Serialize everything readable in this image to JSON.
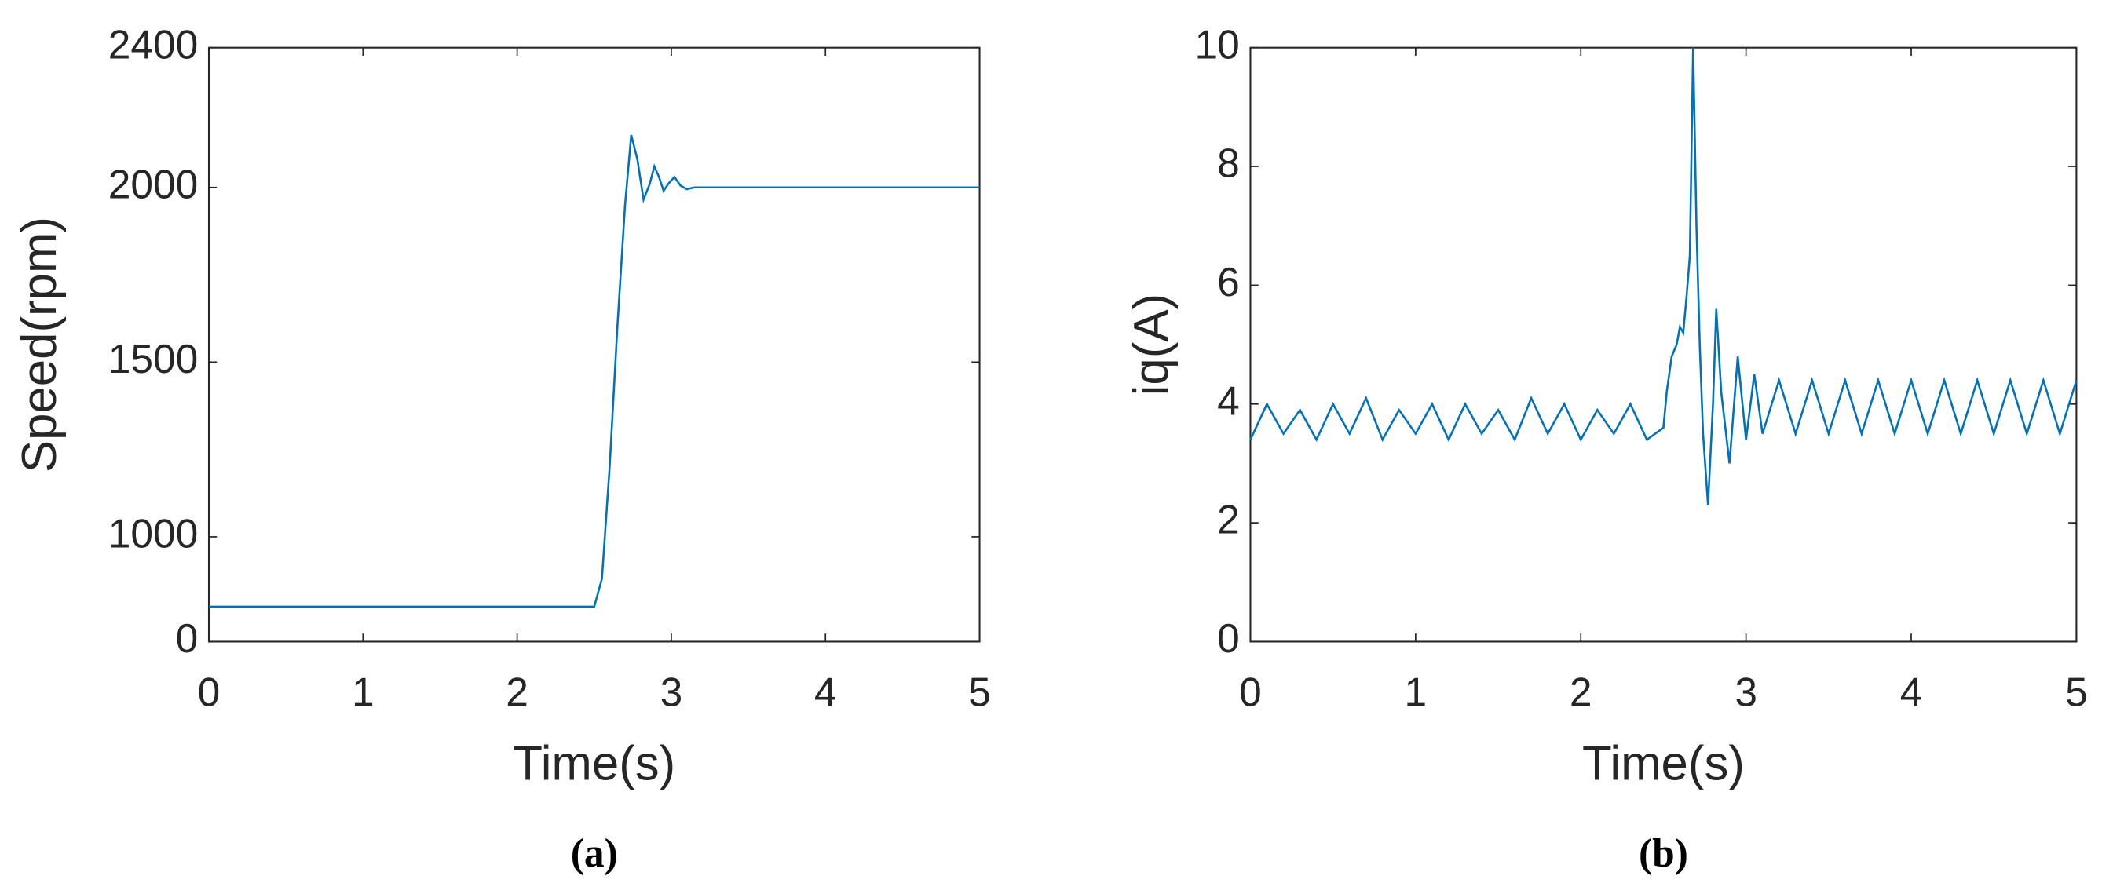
{
  "chart_data": [
    {
      "type": "line",
      "caption": "(a)",
      "x_label": "Time(s)",
      "y_label": "Speed(rpm)",
      "xlim": [
        0,
        5
      ],
      "xticks": [
        0,
        1,
        2,
        3,
        4,
        5
      ],
      "ylim": [
        700,
        2400
      ],
      "yticks": [
        {
          "value": 700,
          "label": "0"
        },
        1000,
        1500,
        2000,
        2400
      ],
      "series": [
        {
          "color": "#0072BD",
          "x": [
            0,
            2.5,
            2.55,
            2.6,
            2.65,
            2.7,
            2.74,
            2.78,
            2.82,
            2.86,
            2.89,
            2.92,
            2.95,
            2.98,
            3.02,
            3.06,
            3.1,
            3.15,
            5
          ],
          "values": [
            800,
            800,
            880,
            1200,
            1600,
            1950,
            2150,
            2080,
            1965,
            2010,
            2060,
            2030,
            1990,
            2010,
            2030,
            2005,
            1995,
            2000,
            2000
          ]
        }
      ]
    },
    {
      "type": "line",
      "caption": "(b)",
      "x_label": "Time(s)",
      "y_label": "iq(A)",
      "xlim": [
        0,
        5
      ],
      "xticks": [
        0,
        1,
        2,
        3,
        4,
        5
      ],
      "ylim": [
        0,
        10
      ],
      "yticks": [
        0,
        2,
        4,
        6,
        8,
        10
      ],
      "series": [
        {
          "color": "#0072BD",
          "x": [
            0,
            0.1,
            0.2,
            0.3,
            0.4,
            0.5,
            0.6,
            0.7,
            0.8,
            0.9,
            1.0,
            1.1,
            1.2,
            1.3,
            1.4,
            1.5,
            1.6,
            1.7,
            1.8,
            1.9,
            2.0,
            2.1,
            2.2,
            2.3,
            2.4,
            2.5,
            2.52,
            2.55,
            2.58,
            2.6,
            2.62,
            2.64,
            2.66,
            2.68,
            2.7,
            2.72,
            2.74,
            2.77,
            2.8,
            2.82,
            2.85,
            2.9,
            2.95,
            3.0,
            3.05,
            3.1,
            3.2,
            3.3,
            3.4,
            3.5,
            3.6,
            3.7,
            3.8,
            3.9,
            4.0,
            4.1,
            4.2,
            4.3,
            4.4,
            4.5,
            4.6,
            4.7,
            4.8,
            4.9,
            5.0
          ],
          "values": [
            3.4,
            4.0,
            3.5,
            3.9,
            3.4,
            4.0,
            3.5,
            4.1,
            3.4,
            3.9,
            3.5,
            4.0,
            3.4,
            4.0,
            3.5,
            3.9,
            3.4,
            4.1,
            3.5,
            4.0,
            3.4,
            3.9,
            3.5,
            4.0,
            3.4,
            3.6,
            4.2,
            4.8,
            5.0,
            5.3,
            5.2,
            5.8,
            6.5,
            10,
            7,
            5,
            3.5,
            2.3,
            4.0,
            5.6,
            4.2,
            3.0,
            4.8,
            3.4,
            4.5,
            3.5,
            4.4,
            3.5,
            4.4,
            3.5,
            4.4,
            3.5,
            4.4,
            3.5,
            4.4,
            3.5,
            4.4,
            3.5,
            4.4,
            3.5,
            4.4,
            3.5,
            4.4,
            3.5,
            4.4
          ]
        }
      ]
    }
  ]
}
